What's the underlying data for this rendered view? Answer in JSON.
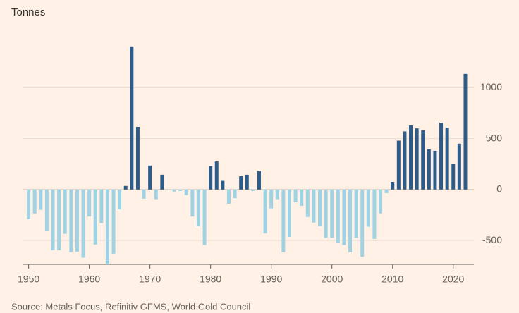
{
  "chart_data": {
    "type": "bar",
    "title": "Tonnes",
    "source": "Source: Metals Focus, Refinitiv GFMS, World Gold Council",
    "x": [
      1950,
      1951,
      1952,
      1953,
      1954,
      1955,
      1956,
      1957,
      1958,
      1959,
      1960,
      1961,
      1962,
      1963,
      1964,
      1965,
      1966,
      1967,
      1968,
      1969,
      1970,
      1971,
      1972,
      1973,
      1974,
      1975,
      1976,
      1977,
      1978,
      1979,
      1980,
      1981,
      1982,
      1983,
      1984,
      1985,
      1986,
      1987,
      1988,
      1989,
      1990,
      1991,
      1992,
      1993,
      1994,
      1995,
      1996,
      1997,
      1998,
      1999,
      2000,
      2001,
      2002,
      2003,
      2004,
      2005,
      2006,
      2007,
      2008,
      2009,
      2010,
      2011,
      2012,
      2013,
      2014,
      2015,
      2016,
      2017,
      2018,
      2019,
      2020,
      2021,
      2022
    ],
    "values": [
      -290,
      -235,
      -200,
      -410,
      -595,
      -595,
      -435,
      -615,
      -610,
      -670,
      -265,
      -540,
      -330,
      -735,
      -630,
      -195,
      35,
      1405,
      615,
      -90,
      235,
      -95,
      145,
      -5,
      -20,
      -15,
      -55,
      -265,
      -360,
      -545,
      230,
      275,
      85,
      -140,
      -85,
      130,
      145,
      -15,
      180,
      -430,
      -185,
      -95,
      -615,
      -465,
      -125,
      -160,
      -270,
      -325,
      -360,
      -475,
      -475,
      -520,
      -545,
      -615,
      -475,
      -660,
      -365,
      -485,
      -235,
      -35,
      75,
      480,
      570,
      630,
      600,
      580,
      395,
      380,
      655,
      605,
      255,
      450,
      1135
    ],
    "colors": {
      "positive": "#2e5c8a",
      "negative": "#9fd3e3"
    },
    "xlim": [
      1949,
      2023.4
    ],
    "xticks": [
      1950,
      1960,
      1970,
      1980,
      1990,
      2000,
      2010,
      2020
    ],
    "ylim": [
      -735,
      1480
    ],
    "yticks": [
      -500,
      0,
      500,
      1000
    ],
    "grid": true
  }
}
